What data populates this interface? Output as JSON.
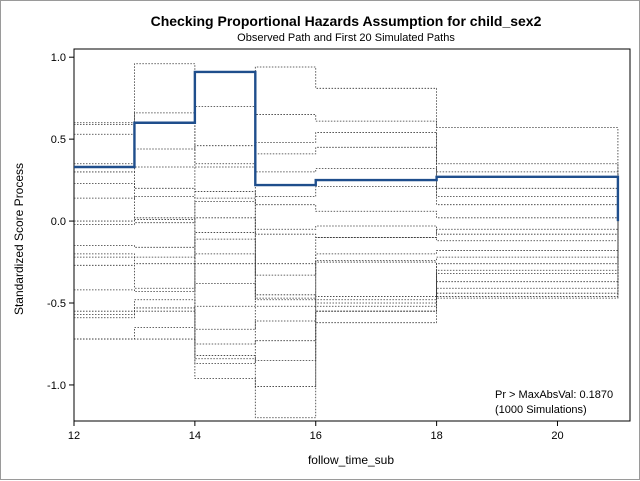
{
  "chart_data": {
    "type": "line",
    "title": "Checking Proportional Hazards Assumption for child_sex2",
    "subtitle": "Observed Path and First 20 Simulated Paths",
    "xlabel": "follow_time_sub",
    "ylabel": "Standardized Score Process",
    "xlim": [
      12,
      21.2
    ],
    "ylim": [
      -1.22,
      1.05
    ],
    "x_ticks": [
      12,
      14,
      16,
      18,
      20
    ],
    "y_ticks": [
      -1.0,
      -0.5,
      0.0,
      0.5,
      1.0
    ],
    "x_tick_labels": [
      "12",
      "14",
      "16",
      "18",
      "20"
    ],
    "y_tick_labels": [
      "-1.0",
      "-0.5",
      "0.0",
      "0.5",
      "1.0"
    ],
    "step_x": [
      12,
      13,
      14,
      15,
      16,
      18,
      21
    ],
    "observed": {
      "name": "Observed Path",
      "color": "#1f4e8c",
      "values": [
        0.33,
        0.6,
        0.91,
        0.22,
        0.25,
        0.27
      ]
    },
    "simulated": {
      "name": "Simulated Paths",
      "color": "#333333",
      "paths": [
        [
          0.59,
          0.96,
          -0.87,
          0.94,
          0.81,
          0.57
        ],
        [
          0.6,
          0.66,
          0.7,
          0.65,
          0.61,
          0.35
        ],
        [
          0.53,
          0.6,
          0.35,
          0.48,
          0.54,
          0.2
        ],
        [
          0.35,
          0.44,
          0.46,
          0.41,
          0.45,
          0.3
        ],
        [
          0.3,
          0.33,
          0.33,
          0.3,
          0.32,
          0.15
        ],
        [
          0.23,
          0.2,
          0.18,
          0.15,
          0.21,
          0.1
        ],
        [
          0.14,
          0.15,
          0.14,
          0.1,
          0.06,
          0.02
        ],
        [
          0.0,
          0.02,
          0.12,
          -0.05,
          -0.03,
          -0.08
        ],
        [
          -0.02,
          -0.01,
          0.02,
          -0.08,
          -0.1,
          -0.12
        ],
        [
          -0.15,
          -0.16,
          -0.07,
          -0.26,
          -0.2,
          -0.18
        ],
        [
          -0.2,
          -0.22,
          -0.11,
          -0.33,
          -0.24,
          -0.22
        ],
        [
          -0.22,
          -0.26,
          -0.2,
          -0.45,
          -0.46,
          -0.26
        ],
        [
          -0.27,
          -0.41,
          -0.26,
          -0.48,
          -0.48,
          -0.3
        ],
        [
          -0.42,
          -0.43,
          -0.38,
          -0.47,
          -0.5,
          -0.32
        ],
        [
          -0.55,
          -0.48,
          -0.52,
          -0.52,
          -0.52,
          -0.37
        ],
        [
          -0.57,
          -0.53,
          -0.66,
          -0.61,
          -0.55,
          -0.41
        ],
        [
          -0.59,
          -0.55,
          -0.75,
          -0.73,
          -0.62,
          -0.44
        ],
        [
          -0.72,
          -0.65,
          -0.82,
          -0.85,
          -0.55,
          -0.46
        ],
        [
          -0.72,
          -0.72,
          -0.84,
          -1.01,
          -0.1,
          -0.05
        ],
        [
          0.3,
          0.01,
          -0.96,
          -1.2,
          -0.25,
          -0.47
        ]
      ]
    },
    "annotation_lines": [
      "Pr > MaxAbsVal: 0.1870",
      "(1000 Simulations)"
    ]
  }
}
